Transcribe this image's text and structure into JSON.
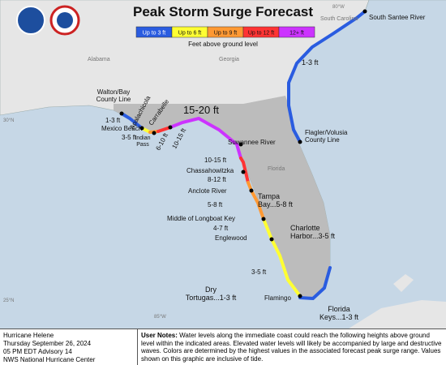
{
  "header": {
    "title": "Peak Storm Surge Forecast"
  },
  "legend": {
    "items": [
      {
        "label": "Up to 3 ft",
        "color": "#2a5ce0"
      },
      {
        "label": "Up to 6 ft",
        "color": "#ffff33"
      },
      {
        "label": "Up to 9 ft",
        "color": "#ff9933"
      },
      {
        "label": "Up to 12 ft",
        "color": "#ff3333"
      },
      {
        "label": "12+ ft",
        "color": "#cc33ff"
      }
    ],
    "caption": "Feet above ground level"
  },
  "map": {
    "regions": [
      "Alabama",
      "Georgia",
      "Florida",
      "South Carolina"
    ],
    "grid": [
      "30°N",
      "25°N",
      "85°W",
      "80°W"
    ],
    "locations": [
      [
        "South Santee River"
      ],
      [
        "1-3 ft"
      ],
      [
        "Walton/Bay",
        "County Line"
      ],
      [
        "Apalachicola"
      ],
      [
        "Carrabelle"
      ],
      [
        "15-20 ft"
      ],
      [
        "1-3 ft"
      ],
      [
        "Mexico Beach"
      ],
      [
        "3-5 ft"
      ],
      [
        "Indian",
        "Pass"
      ],
      [
        "6-10 ft"
      ],
      [
        "10-15 ft"
      ],
      [
        "Suwannee River"
      ],
      [
        "Flagler/Volusia",
        "County Line"
      ],
      [
        "10-15 ft"
      ],
      [
        "Chassahowitzka"
      ],
      [
        "8-12 ft"
      ],
      [
        "Anclote River"
      ],
      [
        "5-8 ft"
      ],
      [
        "Tampa",
        "Bay...5-8 ft"
      ],
      [
        "Middle of Longboat Key"
      ],
      [
        "4-7 ft"
      ],
      [
        "Englewood"
      ],
      [
        "Charlotte",
        "Harbor...3-5 ft"
      ],
      [
        "3-5 ft"
      ],
      [
        "Dry",
        "Tortugas...1-3 ft"
      ],
      [
        "Flamingo"
      ],
      [
        "Florida",
        "Keys...1-3 ft"
      ]
    ]
  },
  "footer": {
    "storm": [
      "Hurricane Helene",
      "Thursday September 26, 2024",
      "05 PM EDT Advisory 14",
      "NWS National Hurricane Center"
    ],
    "notes_label": "User Notes:",
    "notes": "Water levels along the immediate coast could reach the following heights above ground level within the indicated areas. Elevated water levels will likely be accompanied by large and destructive waves. Colors are determined by the highest values in the associated forecast peak surge range. Values shown on this graphic are inclusive of tide."
  }
}
